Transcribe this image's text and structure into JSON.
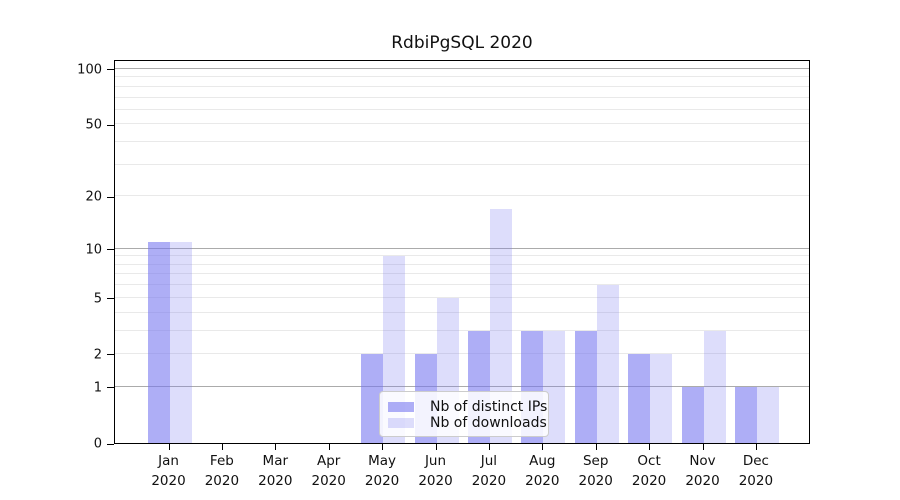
{
  "title": "RdbiPgSQL 2020",
  "chart_data": {
    "type": "bar",
    "title": "RdbiPgSQL 2020",
    "categories": [
      {
        "label": "Jan",
        "sub": "2020"
      },
      {
        "label": "Feb",
        "sub": "2020"
      },
      {
        "label": "Mar",
        "sub": "2020"
      },
      {
        "label": "Apr",
        "sub": "2020"
      },
      {
        "label": "May",
        "sub": "2020"
      },
      {
        "label": "Jun",
        "sub": "2020"
      },
      {
        "label": "Jul",
        "sub": "2020"
      },
      {
        "label": "Aug",
        "sub": "2020"
      },
      {
        "label": "Sep",
        "sub": "2020"
      },
      {
        "label": "Oct",
        "sub": "2020"
      },
      {
        "label": "Nov",
        "sub": "2020"
      },
      {
        "label": "Dec",
        "sub": "2020"
      }
    ],
    "series": [
      {
        "name": "Nb of distinct IPs",
        "color": "rgba(115,115,240,0.58)",
        "values": [
          11,
          0,
          0,
          0,
          2,
          2,
          3,
          3,
          3,
          2,
          1,
          1
        ]
      },
      {
        "name": "Nb of downloads",
        "color": "rgba(123,123,238,0.26)",
        "values": [
          11,
          0,
          0,
          0,
          9,
          5,
          17,
          3,
          6,
          2,
          3,
          1
        ]
      }
    ],
    "y_axis": {
      "scale": "log10(value+1)",
      "ticks": [
        0,
        1,
        2,
        5,
        10,
        20,
        50,
        100
      ],
      "major_gridlines": [
        1,
        10,
        100
      ],
      "minor_gridlines": [
        2,
        3,
        4,
        5,
        6,
        7,
        8,
        9,
        20,
        30,
        40,
        50,
        60,
        70,
        80,
        90
      ],
      "ylim_top_value": 113
    },
    "legend": {
      "position": "bottom-center",
      "entries": [
        "Nb of distinct IPs",
        "Nb of downloads"
      ]
    },
    "grid": "on",
    "xlabel": "",
    "ylabel": ""
  }
}
